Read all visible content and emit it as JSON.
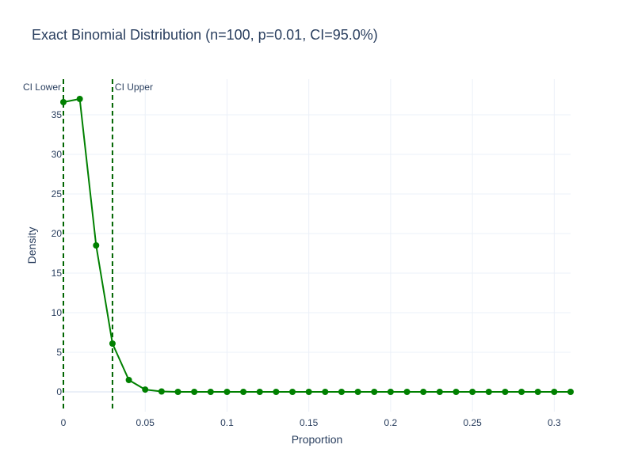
{
  "chart_data": {
    "type": "line",
    "title": "Exact Binomial Distribution (n=100, p=0.01, CI=95.0%)",
    "xlabel": "Proportion",
    "ylabel": "Density",
    "xlim": [
      0,
      0.31
    ],
    "ylim": [
      -2.5,
      39.5
    ],
    "grid": true,
    "x_ticks": [
      0,
      0.05,
      0.1,
      0.15,
      0.2,
      0.25,
      0.3
    ],
    "x_tick_labels": [
      "0",
      "0.05",
      "0.1",
      "0.15",
      "0.2",
      "0.25",
      "0.3"
    ],
    "y_ticks": [
      0,
      5,
      10,
      15,
      20,
      25,
      30,
      35
    ],
    "y_tick_labels": [
      "0",
      "5",
      "10",
      "15",
      "20",
      "25",
      "30",
      "35"
    ],
    "series": [
      {
        "color": "#008000",
        "x": [
          0,
          0.01,
          0.02,
          0.03,
          0.04,
          0.05,
          0.06,
          0.07,
          0.08,
          0.09,
          0.1,
          0.11,
          0.12,
          0.13,
          0.14,
          0.15,
          0.16,
          0.17,
          0.18,
          0.19,
          0.2,
          0.21,
          0.22,
          0.23,
          0.24,
          0.25,
          0.26,
          0.27,
          0.28,
          0.29,
          0.3,
          0.31
        ],
        "y": [
          36.6,
          37.0,
          18.5,
          6.1,
          1.5,
          0.29,
          0.05,
          0.0,
          0.0,
          0.0,
          0.0,
          0.0,
          0.0,
          0.0,
          0.0,
          0.0,
          0.0,
          0.0,
          0.0,
          0.0,
          0.0,
          0.0,
          0.0,
          0.0,
          0.0,
          0.0,
          0.0,
          0.0,
          0.0,
          0.0,
          0.0,
          0.0
        ]
      }
    ],
    "reference_lines": [
      {
        "label": "CI Lower",
        "x": 0.0,
        "color": "#006400"
      },
      {
        "label": "CI Upper",
        "x": 0.03,
        "color": "#006400"
      }
    ]
  }
}
